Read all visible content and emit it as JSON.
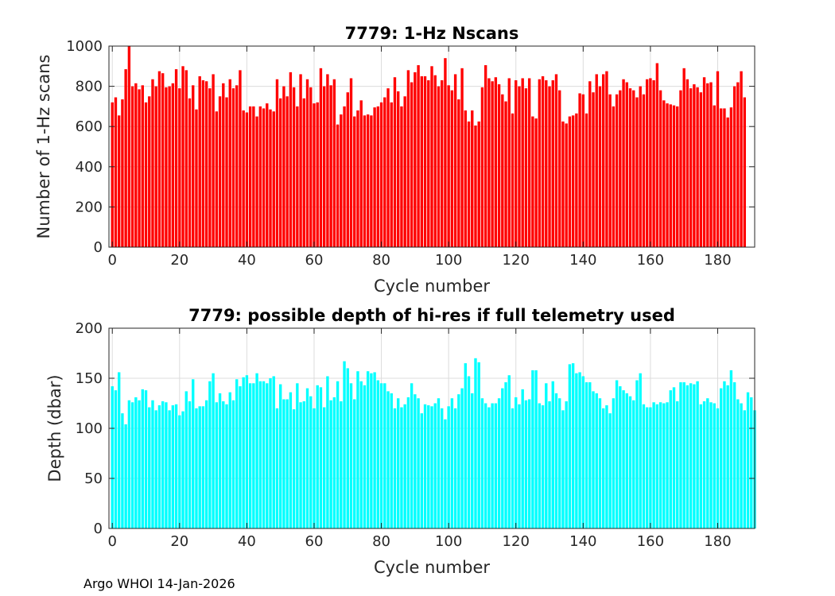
{
  "chart_data": [
    {
      "type": "bar",
      "title": "7779: 1-Hz Nscans",
      "xlabel": "Cycle number",
      "ylabel": "Number of 1-Hz scans",
      "xlim": [
        -1,
        191
      ],
      "ylim": [
        0,
        1000
      ],
      "xticks": [
        0,
        20,
        40,
        60,
        80,
        100,
        120,
        140,
        160,
        180
      ],
      "yticks": [
        0,
        200,
        400,
        600,
        800,
        1000
      ],
      "grid": true,
      "color": "#ff0000",
      "x_start": 0,
      "values": [
        720,
        745,
        655,
        735,
        885,
        1000,
        800,
        815,
        785,
        805,
        720,
        750,
        835,
        800,
        875,
        865,
        795,
        800,
        815,
        885,
        790,
        900,
        880,
        740,
        805,
        685,
        850,
        830,
        825,
        790,
        860,
        675,
        750,
        815,
        745,
        835,
        790,
        805,
        880,
        680,
        670,
        700,
        700,
        650,
        700,
        690,
        715,
        685,
        675,
        835,
        740,
        800,
        750,
        870,
        795,
        700,
        860,
        740,
        835,
        795,
        715,
        720,
        890,
        800,
        860,
        805,
        835,
        610,
        660,
        700,
        770,
        840,
        650,
        680,
        730,
        655,
        660,
        655,
        695,
        700,
        720,
        745,
        790,
        720,
        845,
        775,
        700,
        750,
        880,
        820,
        870,
        905,
        850,
        850,
        830,
        900,
        855,
        800,
        830,
        940,
        805,
        780,
        860,
        735,
        890,
        680,
        625,
        680,
        605,
        625,
        795,
        905,
        840,
        825,
        845,
        810,
        760,
        725,
        840,
        665,
        830,
        800,
        840,
        790,
        840,
        650,
        640,
        835,
        850,
        830,
        800,
        830,
        860,
        780,
        625,
        615,
        650,
        655,
        665,
        765,
        760,
        665,
        825,
        770,
        860,
        800,
        860,
        875,
        760,
        700,
        760,
        780,
        835,
        820,
        790,
        780,
        745,
        800,
        760,
        835,
        840,
        830,
        915,
        780,
        730,
        715,
        710,
        705,
        700,
        780,
        890,
        835,
        790,
        810,
        795,
        770,
        845,
        815,
        820,
        705,
        875,
        690,
        690,
        645,
        695,
        800,
        820,
        875,
        745
      ]
    },
    {
      "type": "bar",
      "title": "7779: possible depth of hi-res if full telemetry used",
      "xlabel": "Cycle number",
      "ylabel": "Depth (dbar)",
      "xlim": [
        -1,
        191
      ],
      "ylim": [
        0,
        200
      ],
      "xticks": [
        0,
        20,
        40,
        60,
        80,
        100,
        120,
        140,
        160,
        180
      ],
      "yticks": [
        0,
        50,
        100,
        150,
        200
      ],
      "grid": true,
      "color": "#00ffff",
      "x_start": 0,
      "values": [
        142,
        138,
        156,
        115,
        104,
        128,
        126,
        131,
        128,
        139,
        138,
        121,
        128,
        118,
        123,
        127,
        126,
        118,
        123,
        124,
        113,
        117,
        137,
        127,
        149,
        120,
        122,
        122,
        128,
        147,
        155,
        126,
        135,
        127,
        124,
        136,
        128,
        149,
        142,
        151,
        153,
        145,
        145,
        155,
        147,
        147,
        145,
        150,
        152,
        120,
        144,
        129,
        129,
        136,
        119,
        145,
        126,
        127,
        140,
        132,
        120,
        143,
        141,
        121,
        152,
        128,
        131,
        147,
        127,
        167,
        160,
        145,
        129,
        157,
        147,
        143,
        157,
        155,
        156,
        148,
        145,
        145,
        137,
        135,
        120,
        130,
        121,
        124,
        131,
        145,
        134,
        130,
        115,
        124,
        123,
        122,
        125,
        130,
        120,
        109,
        122,
        130,
        120,
        134,
        140,
        165,
        152,
        135,
        170,
        166,
        130,
        125,
        121,
        125,
        125,
        130,
        140,
        146,
        153,
        120,
        131,
        124,
        139,
        128,
        129,
        158,
        158,
        125,
        123,
        145,
        127,
        147,
        135,
        130,
        118,
        127,
        164,
        165,
        155,
        156,
        152,
        146,
        146,
        137,
        135,
        130,
        120,
        123,
        115,
        130,
        148,
        142,
        138,
        135,
        132,
        128,
        148,
        155,
        124,
        121,
        121,
        126,
        124,
        126,
        125,
        126,
        138,
        141,
        127,
        146,
        146,
        143,
        145,
        144,
        147,
        124,
        127,
        130,
        126,
        125,
        120,
        140,
        147,
        143,
        158,
        146,
        129,
        125,
        118,
        136,
        131,
        118
      ]
    }
  ],
  "footer": "Argo WHOI 14-Jan-2026"
}
